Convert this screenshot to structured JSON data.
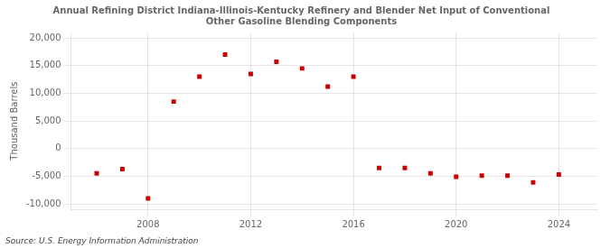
{
  "chart_data": {
    "type": "scatter",
    "title": "Annual Refining District Indiana-Illinois-Kentucky Refinery and Blender Net Input of Conventional\nOther Gasoline Blending Components",
    "y_label": "Thousand Barrels",
    "annotation": "Source: U.S. Energy Information Administration",
    "x": [
      2006,
      2007,
      2008,
      2009,
      2010,
      2011,
      2012,
      2013,
      2014,
      2015,
      2016,
      2017,
      2018,
      2019,
      2020,
      2021,
      2022,
      2023,
      2024
    ],
    "values": [
      -4500,
      -3700,
      -9000,
      8500,
      13000,
      17000,
      13500,
      15700,
      14500,
      11200,
      13000,
      -3500,
      -3500,
      -4500,
      -5100,
      -4900,
      -4900,
      -6100,
      -4700
    ],
    "color": "#cc0000",
    "marker": "square",
    "xlim": [
      2005.0,
      2025.5
    ],
    "xticks": [
      2008,
      2012,
      2016,
      2020,
      2024
    ],
    "ylim": [
      -11000,
      21000
    ],
    "yticks": [
      {
        "value": -10000,
        "label": "-10,000"
      },
      {
        "value": -5000,
        "label": "-5,000"
      },
      0,
      {
        "value": 5000,
        "label": "5,000"
      },
      {
        "value": 10000,
        "label": "10,000"
      },
      {
        "value": 15000,
        "label": "15,000"
      },
      {
        "value": 20000,
        "label": "20,000"
      }
    ],
    "grid": true
  }
}
